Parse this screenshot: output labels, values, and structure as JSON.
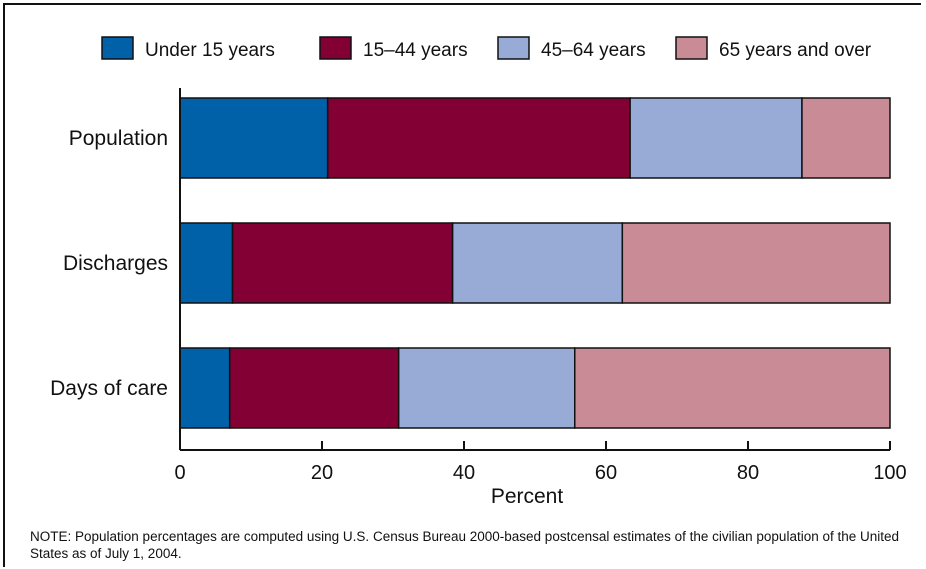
{
  "chart_data": {
    "type": "bar",
    "orientation": "horizontal",
    "stacked": true,
    "categories": [
      "Population",
      "Discharges",
      "Days of care"
    ],
    "series": [
      {
        "name": "Under 15 years",
        "color": "#0060a8",
        "values": [
          20.8,
          7.4,
          7.0
        ]
      },
      {
        "name": "15–44 years",
        "color": "#820034",
        "values": [
          42.6,
          31.0,
          23.8
        ]
      },
      {
        "name": "45–64 years",
        "color": "#97abd6",
        "values": [
          24.2,
          23.9,
          24.8
        ]
      },
      {
        "name": "65 years and over",
        "color": "#c98b95",
        "values": [
          12.4,
          37.7,
          44.4
        ]
      }
    ],
    "xlabel": "Percent",
    "ylabel": "",
    "xlim": [
      0,
      100
    ],
    "xticks": [
      0,
      20,
      40,
      60,
      80,
      100
    ],
    "grid": false,
    "legend_position": "top"
  },
  "note": "NOTE:  Population percentages are computed using U.S. Census Bureau 2000-based postcensal estimates of the civilian population of the United States as of July 1, 2004."
}
